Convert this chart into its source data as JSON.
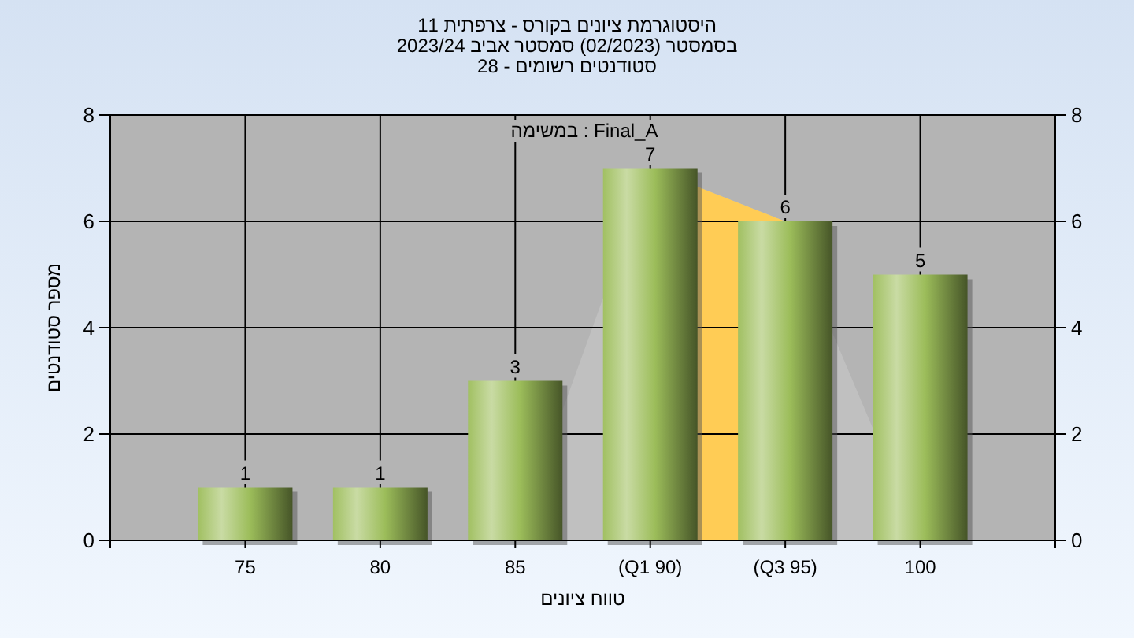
{
  "chart_data": {
    "type": "bar",
    "title": "היסטוגרמת ציונים בקורס - צרפתית 11\nבסמסטר  (02/2023)  סמסטר אביב 2023/24\nסטודנטים רשומים - 28",
    "xlabel": "טווח ציונים",
    "ylabel": "מספר סטודנטים",
    "annotations": [
      "במשימה : Final_A"
    ],
    "categories": [
      "75",
      "80",
      "85",
      "(Q1 90)",
      "(Q3 95)",
      "100"
    ],
    "series": [
      {
        "color": "#9cbd5a",
        "values": [
          1,
          1,
          3,
          7,
          6,
          5
        ]
      }
    ],
    "bands": [
      {
        "axis": "x",
        "from": "(Q1 90)",
        "to": "(Q3 95)",
        "color": "#ffcc55"
      }
    ],
    "data_labels": true,
    "ylim": [
      0,
      8
    ],
    "yticks": [
      0,
      2,
      4,
      6,
      8
    ],
    "y2lim": [
      0,
      8
    ],
    "y2ticks": [
      0,
      2,
      4,
      6,
      8
    ],
    "grid": true
  }
}
